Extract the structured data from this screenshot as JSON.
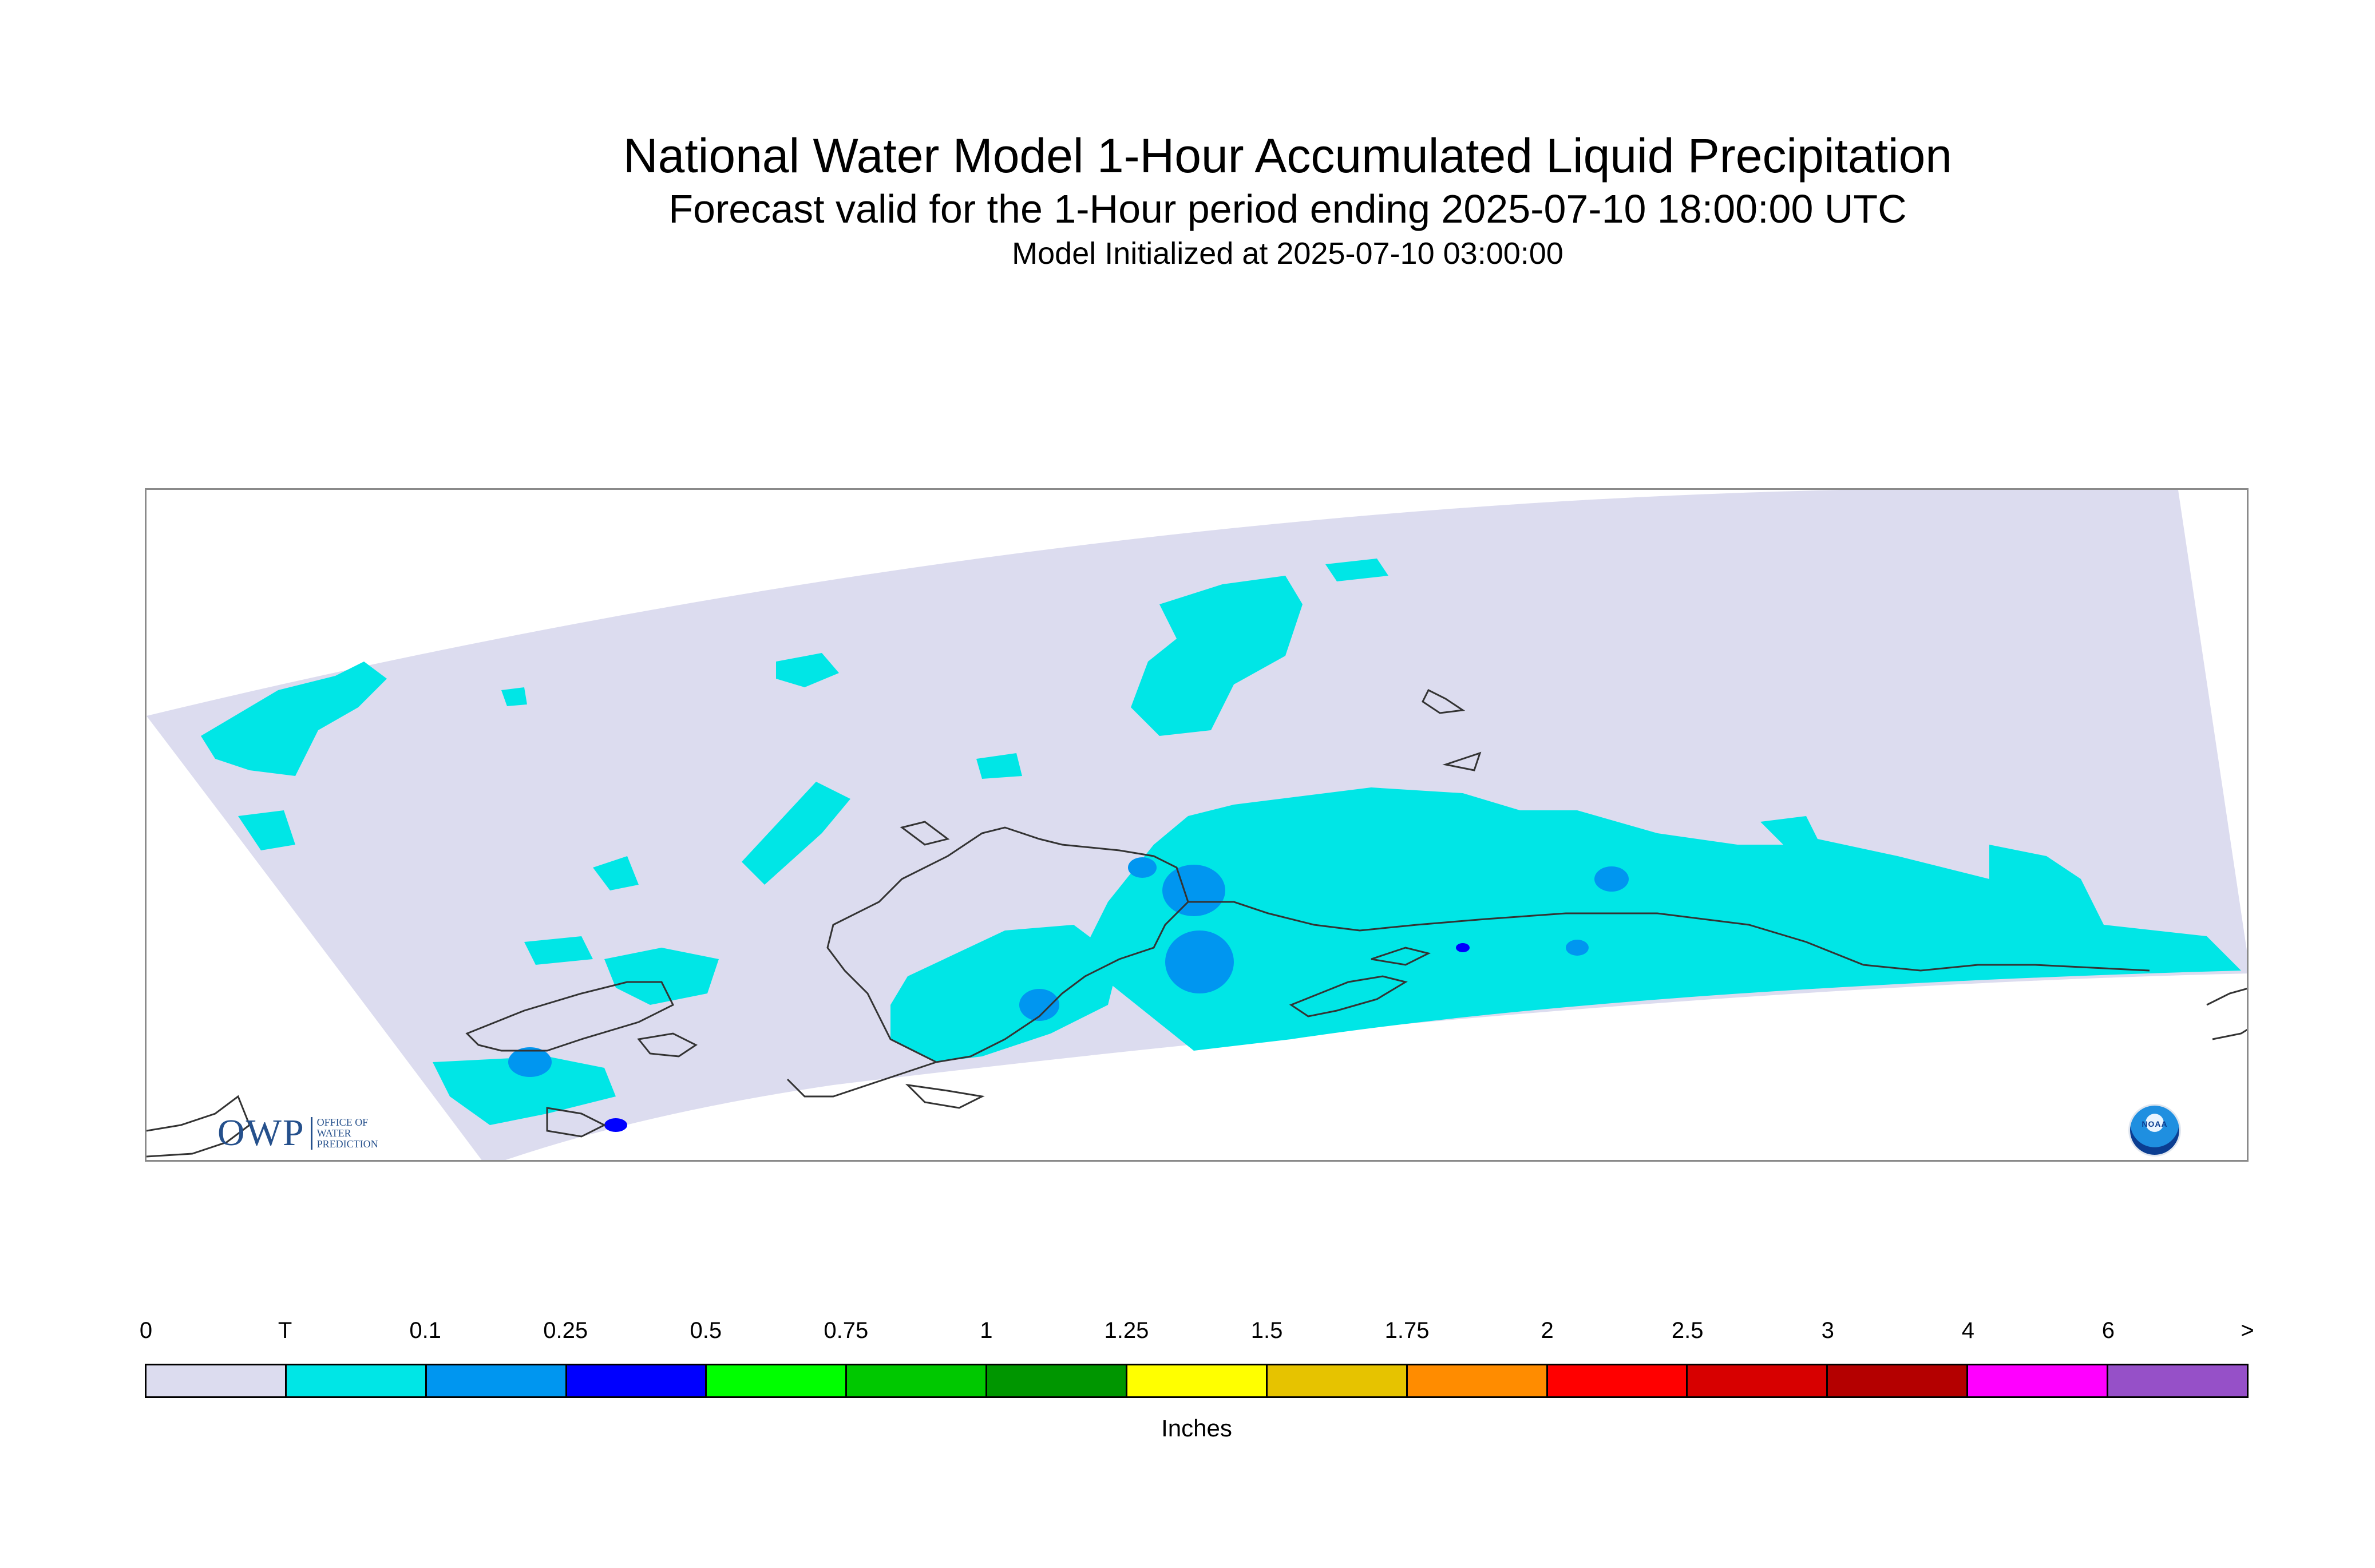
{
  "header": {
    "title": "National Water Model 1-Hour Accumulated Liquid Precipitation",
    "subtitle": "Forecast valid for the 1-Hour period ending 2025-07-10 18:00:00 UTC",
    "init": "Model Initialized at 2025-07-10 03:00:00"
  },
  "map": {
    "domain_color": "#dcdcef",
    "land_outline_color": "#333333",
    "frame_color": "#8a8a8a",
    "precip_classes_shown": [
      "T",
      "0.1",
      "0.25"
    ]
  },
  "logos": {
    "owp": {
      "mark": "OWP",
      "lines": [
        "Office of",
        "Water",
        "Prediction"
      ]
    },
    "noaa": {
      "text": "NOAA"
    }
  },
  "legend": {
    "labels": [
      "0",
      "T",
      "0.1",
      "0.25",
      "0.5",
      "0.75",
      "1",
      "1.25",
      "1.5",
      "1.75",
      "2",
      "2.5",
      "3",
      "4",
      "6",
      ">"
    ],
    "colors": [
      "#dcdcef",
      "#00e6e6",
      "#0096f0",
      "#0000ff",
      "#00ff00",
      "#00c800",
      "#009600",
      "#ffff00",
      "#e6c300",
      "#ff8c00",
      "#ff0000",
      "#d70000",
      "#b40000",
      "#ff00ff",
      "#9650c8"
    ],
    "unit": "Inches"
  }
}
